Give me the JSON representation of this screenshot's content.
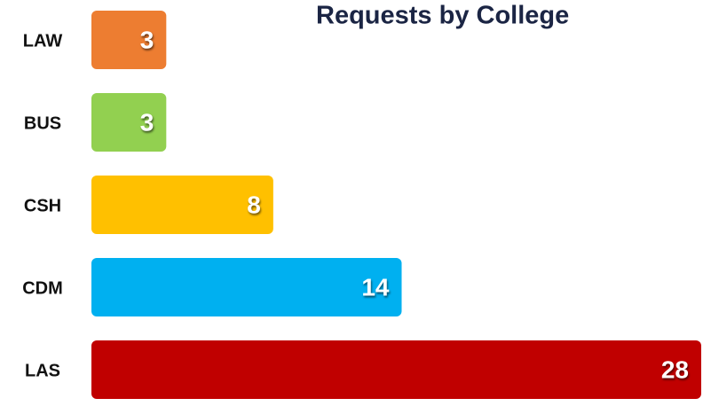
{
  "chart_data": {
    "type": "bar",
    "orientation": "horizontal",
    "title": "Requests by College",
    "categories": [
      "LAW",
      "BUS",
      "CSH",
      "CDM",
      "LAS"
    ],
    "values": [
      3,
      3,
      8,
      14,
      28
    ],
    "colors": [
      "#ed7d31",
      "#92d050",
      "#ffc000",
      "#00b0f0",
      "#c00000"
    ]
  }
}
